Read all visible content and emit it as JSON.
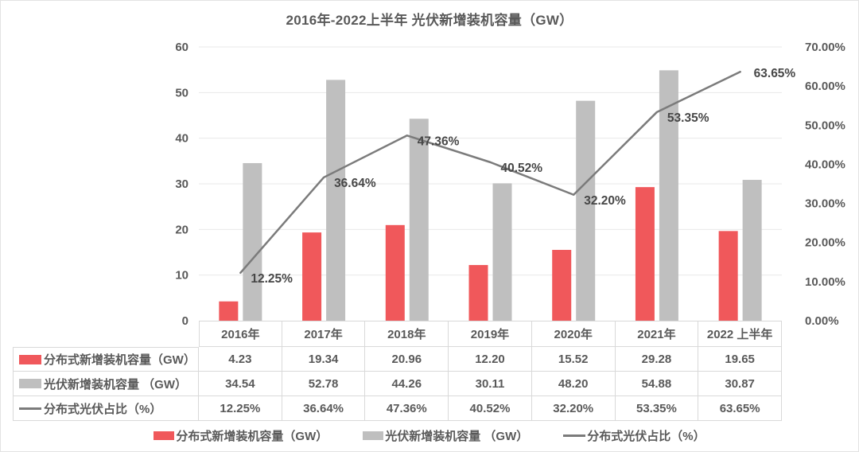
{
  "title": "2016年-2022上半年 光伏新增装机容量（GW）",
  "colors": {
    "bar_red": "#f0585b",
    "bar_gray": "#bfbfbf",
    "line_gray": "#7b7b7b",
    "text": "#595959",
    "data_label": "#474747",
    "gridline": "#eaeaea",
    "table_border": "#d9d9d9"
  },
  "chart_data": {
    "type": "combo-bar-line",
    "title": "2016年-2022上半年 光伏新增装机容量（GW）",
    "categories": [
      "2016年",
      "2017年",
      "2018年",
      "2019年",
      "2020年",
      "2021年",
      "2022 上半年"
    ],
    "series": [
      {
        "name": "分布式新增装机容量（GW）",
        "type": "bar",
        "axis": "left",
        "color": "#f0585b",
        "values": [
          4.23,
          19.34,
          20.96,
          12.2,
          15.52,
          29.28,
          19.65
        ]
      },
      {
        "name": "光伏新增装机容量 （GW）",
        "type": "bar",
        "axis": "left",
        "color": "#bfbfbf",
        "values": [
          34.54,
          52.78,
          44.26,
          30.11,
          48.2,
          54.88,
          30.87
        ]
      },
      {
        "name": "分布式光伏占比（%）",
        "type": "line",
        "axis": "right",
        "color": "#7b7b7b",
        "values": [
          12.25,
          36.64,
          47.36,
          40.52,
          32.2,
          53.35,
          63.65
        ],
        "labels": [
          "12.25%",
          "36.64%",
          "47.36%",
          "40.52%",
          "32.20%",
          "53.35%",
          "63.65%"
        ]
      }
    ],
    "left_axis": {
      "min": 0,
      "max": 60,
      "step": 10,
      "ticks": [
        "0",
        "10",
        "20",
        "30",
        "40",
        "50",
        "60"
      ]
    },
    "right_axis": {
      "min": 0,
      "max": 70,
      "step": 10,
      "ticks": [
        "0.00%",
        "10.00%",
        "20.00%",
        "30.00%",
        "40.00%",
        "50.00%",
        "60.00%",
        "70.00%"
      ]
    },
    "grid": true,
    "legend_position": "bottom"
  },
  "table": {
    "header": [
      "2016年",
      "2017年",
      "2018年",
      "2019年",
      "2020年",
      "2021年",
      "2022 上半年"
    ],
    "rows": [
      {
        "label": "分布式新增装机容量（GW）",
        "swatch": "bar",
        "color": "#f0585b",
        "values": [
          "4.23",
          "19.34",
          "20.96",
          "12.20",
          "15.52",
          "29.28",
          "19.65"
        ]
      },
      {
        "label": "光伏新增装机容量 （GW）",
        "swatch": "bar",
        "color": "#bfbfbf",
        "values": [
          "34.54",
          "52.78",
          "44.26",
          "30.11",
          "48.20",
          "54.88",
          "30.87"
        ]
      },
      {
        "label": "分布式光伏占比（%）",
        "swatch": "line",
        "color": "#7b7b7b",
        "values": [
          "12.25%",
          "36.64%",
          "47.36%",
          "40.52%",
          "32.20%",
          "53.35%",
          "63.65%"
        ]
      }
    ]
  },
  "legend": {
    "items": [
      {
        "label": "分布式新增装机容量（GW）",
        "swatch": "bar",
        "color": "#f0585b"
      },
      {
        "label": "光伏新增装机容量 （GW）",
        "swatch": "bar",
        "color": "#bfbfbf"
      },
      {
        "label": "分布式光伏占比（%）",
        "swatch": "line",
        "color": "#7b7b7b"
      }
    ]
  }
}
